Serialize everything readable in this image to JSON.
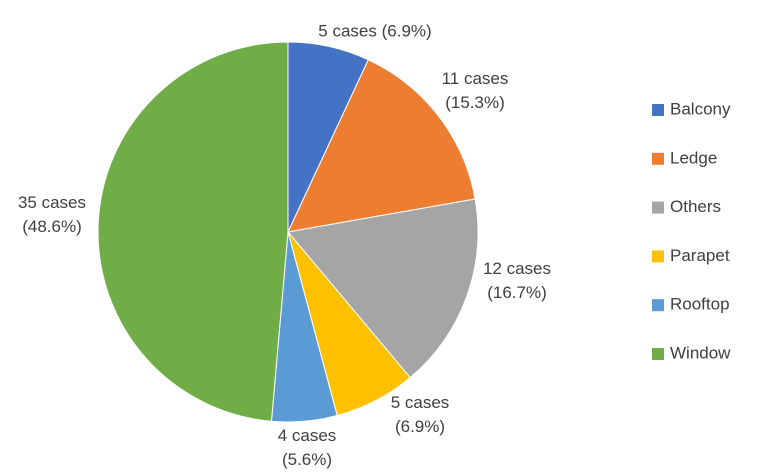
{
  "chart_data": {
    "type": "pie",
    "categories": [
      "Balcony",
      "Ledge",
      "Others",
      "Parapet",
      "Rooftop",
      "Window"
    ],
    "values": [
      5,
      11,
      12,
      5,
      4,
      35
    ],
    "value_labels": [
      "5 cases (6.9%)",
      "11 cases (15.3%)",
      "12 cases (16.7%)",
      "5 cases (6.9%)",
      "4 cases (5.6%)",
      "35 cases (48.6%)"
    ],
    "colors": [
      "#4472c4",
      "#ed7d31",
      "#a5a5a5",
      "#ffc000",
      "#5b9bd5",
      "#70ad47"
    ],
    "legend": "right"
  }
}
